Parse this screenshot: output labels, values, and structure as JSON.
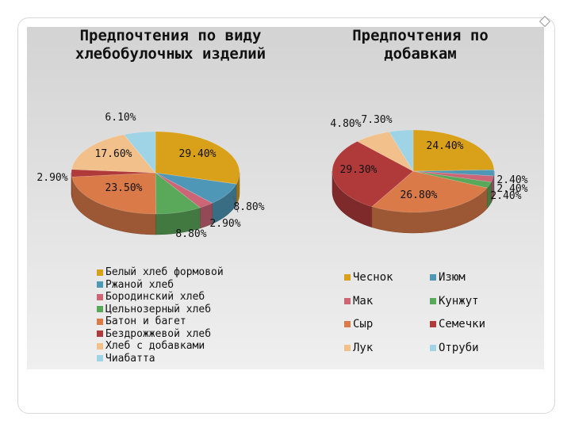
{
  "slide": {
    "nav_icon": "diamond-icon"
  },
  "chart_data": [
    {
      "type": "pie",
      "title": "Предпочтения по виду хлебобулочных изделий",
      "categories": [
        "Белый хлеб формовой",
        "Ржаной хлеб",
        "Бородинский хлеб",
        "Цельнозерный хлеб",
        "Батон и багет",
        "Бездрожжевой хлеб",
        "Хлеб с добавками",
        "Чиабатта"
      ],
      "values": [
        29.4,
        8.8,
        2.9,
        8.8,
        23.5,
        2.9,
        17.6,
        6.1
      ],
      "labels": [
        "29.40%",
        "8.80%",
        "2.90%",
        "8.80%",
        "23.50%",
        "2.90%",
        "17.60%",
        "6.10%"
      ],
      "colors": [
        "#d9a01a",
        "#4f97b6",
        "#cc6677",
        "#5aa85a",
        "#d97a48",
        "#b03a3a",
        "#f2c08a",
        "#9fd3e6"
      ],
      "style": "3d",
      "legend": "bottom"
    },
    {
      "type": "pie",
      "title": "Предпочтения по добавкам",
      "categories": [
        "Чеснок",
        "Изюм",
        "Мак",
        "Кунжут",
        "Сыр",
        "Семечки",
        "Лук",
        "Отруби"
      ],
      "values": [
        24.4,
        2.4,
        2.4,
        2.4,
        26.8,
        29.3,
        7.3,
        4.8
      ],
      "labels": [
        "24.40%",
        "2.40%",
        "2.40%",
        "2.40%",
        "26.80%",
        "29.30%",
        "7.30%",
        "4.80%"
      ],
      "colors": [
        "#d9a01a",
        "#4f97b6",
        "#cc6677",
        "#5aa85a",
        "#d97a48",
        "#b03a3a",
        "#f2c08a",
        "#9fd3e6"
      ],
      "style": "3d",
      "legend": "bottom"
    }
  ]
}
